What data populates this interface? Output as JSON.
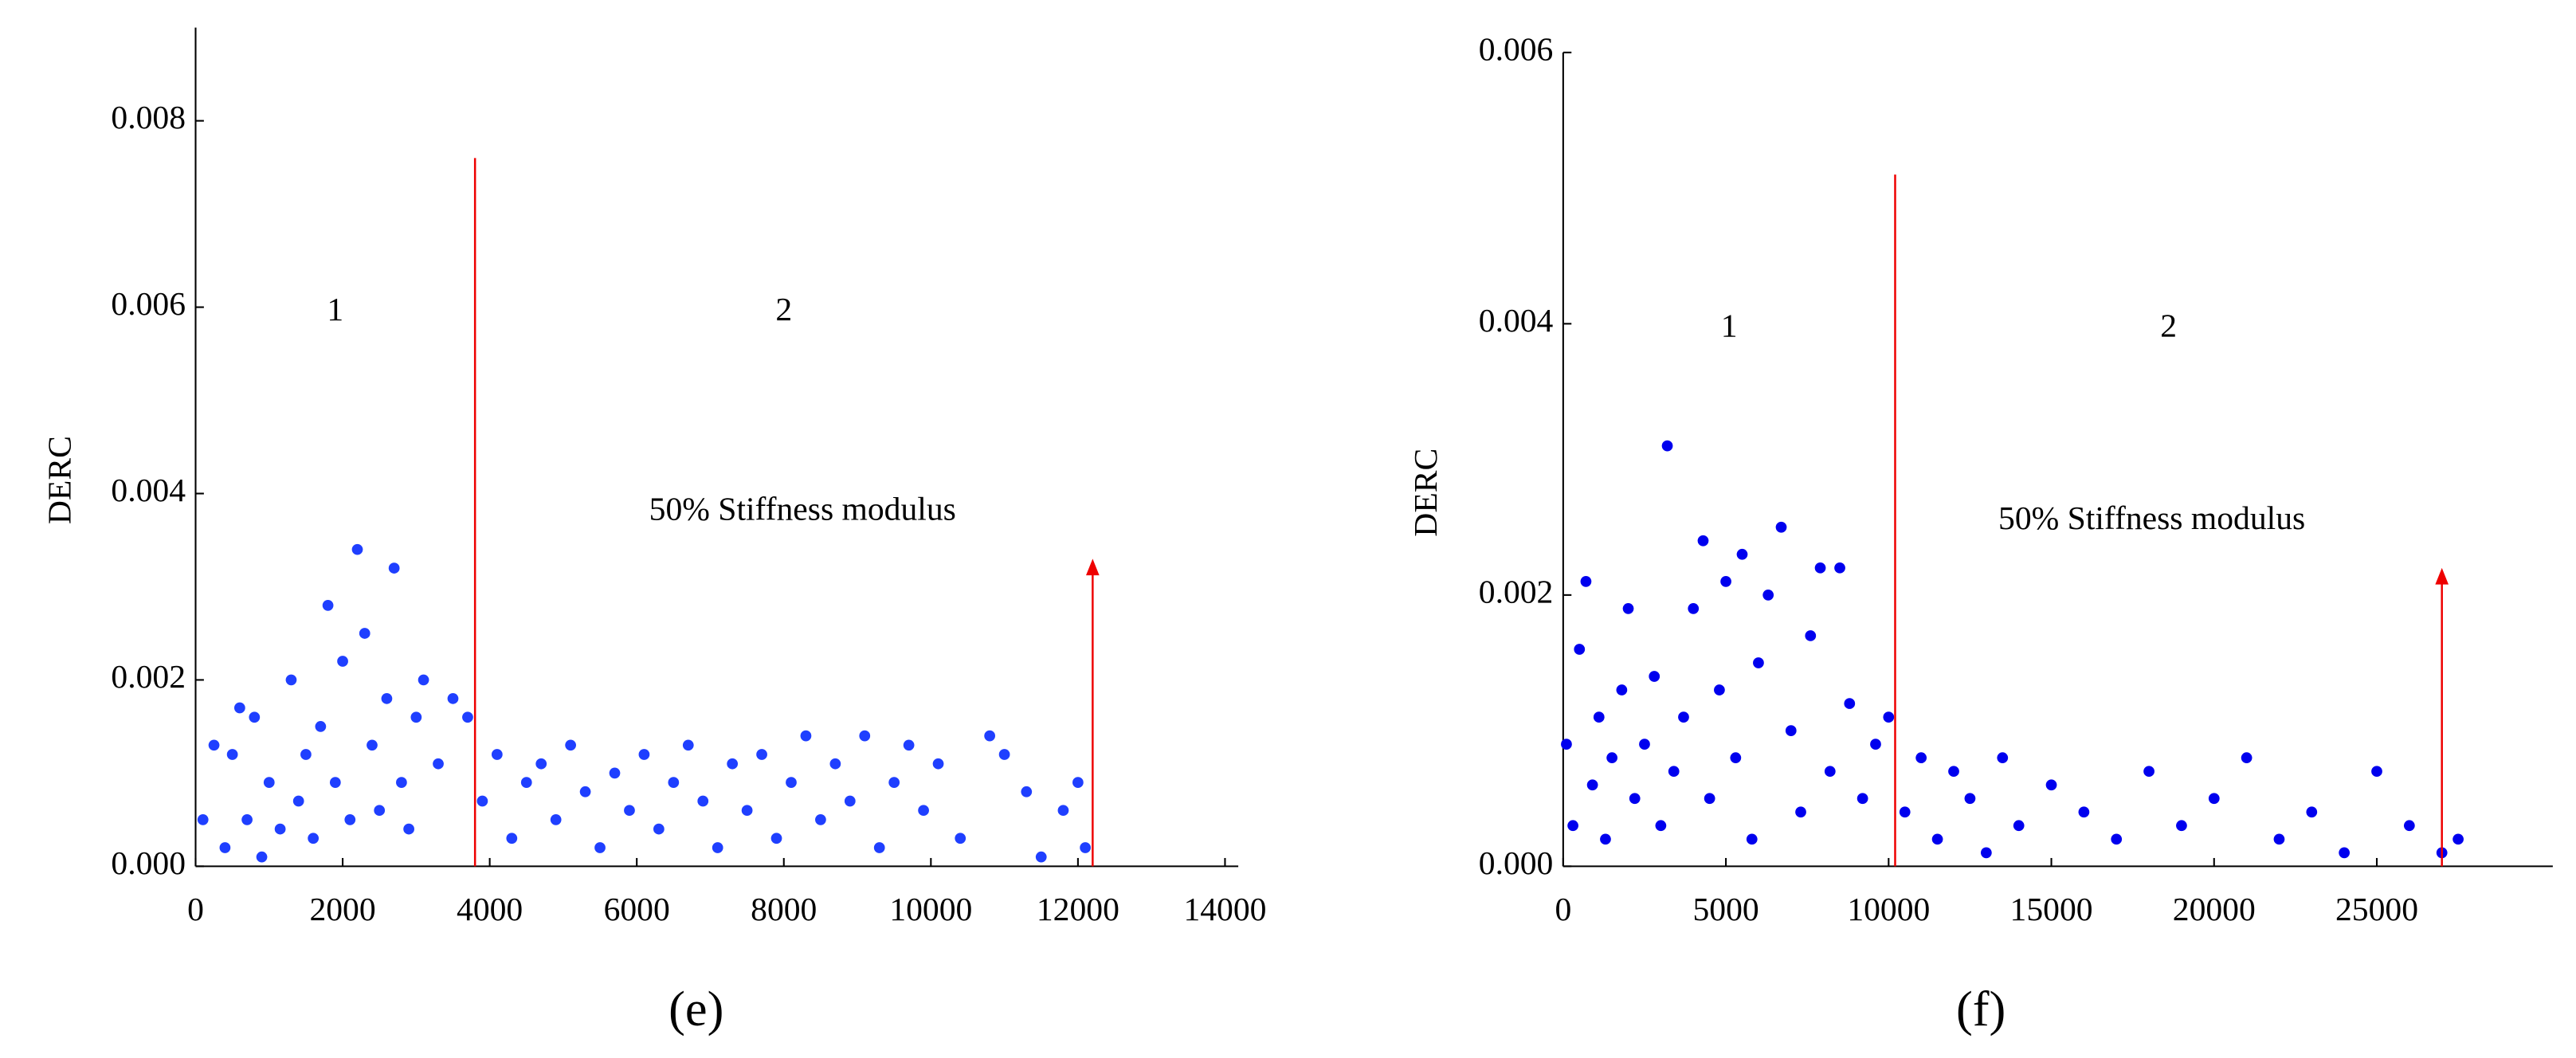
{
  "chart_data": [
    {
      "type": "scatter",
      "caption": "(e)",
      "y_label": "DERC",
      "color": "#1f3fff",
      "region_labels": [
        "1",
        "2"
      ],
      "annotation": "50% Stiffness modulus",
      "boundary_x": 3800,
      "boundary_top": 0.0076,
      "arrow_x": 12200,
      "arrow_top": 0.0033,
      "xlim": [
        0,
        14000
      ],
      "xticks": [
        0,
        2000,
        4000,
        6000,
        8000,
        10000,
        12000,
        14000
      ],
      "ylim": [
        0,
        0.009
      ],
      "yticks": [
        {
          "value": 0,
          "label": "0.000"
        },
        {
          "value": 0.002,
          "label": "0.002"
        },
        {
          "value": 0.004,
          "label": "0.004"
        },
        {
          "value": 0.006,
          "label": "0.006"
        },
        {
          "value": 0.008,
          "label": "0.008"
        }
      ],
      "x": [
        100,
        250,
        400,
        500,
        600,
        700,
        800,
        900,
        1000,
        1150,
        1300,
        1400,
        1500,
        1600,
        1700,
        1800,
        1900,
        2000,
        2100,
        2200,
        2300,
        2400,
        2500,
        2600,
        2700,
        2800,
        2900,
        3000,
        3100,
        3300,
        3500,
        3700,
        3900,
        4100,
        4300,
        4500,
        4700,
        4900,
        5100,
        5300,
        5500,
        5700,
        5900,
        6100,
        6300,
        6500,
        6700,
        6900,
        7100,
        7300,
        7500,
        7700,
        7900,
        8100,
        8300,
        8500,
        8700,
        8900,
        9100,
        9300,
        9500,
        9700,
        9900,
        10100,
        10400,
        10800,
        11000,
        11300,
        11500,
        11800,
        12000,
        12100
      ],
      "y": [
        0.0005,
        0.0013,
        0.0002,
        0.0012,
        0.0017,
        0.0005,
        0.0016,
        0.0001,
        0.0009,
        0.0004,
        0.002,
        0.0007,
        0.0012,
        0.0003,
        0.0015,
        0.0028,
        0.0009,
        0.0022,
        0.0005,
        0.0034,
        0.0025,
        0.0013,
        0.0006,
        0.0018,
        0.0032,
        0.0009,
        0.0004,
        0.0016,
        0.002,
        0.0011,
        0.0018,
        0.0016,
        0.0007,
        0.0012,
        0.0003,
        0.0009,
        0.0011,
        0.0005,
        0.0013,
        0.0008,
        0.0002,
        0.001,
        0.0006,
        0.0012,
        0.0004,
        0.0009,
        0.0013,
        0.0007,
        0.0002,
        0.0011,
        0.0006,
        0.0012,
        0.0003,
        0.0009,
        0.0014,
        0.0005,
        0.0011,
        0.0007,
        0.0014,
        0.0002,
        0.0009,
        0.0013,
        0.0006,
        0.0011,
        0.0003,
        0.0014,
        0.0012,
        0.0008,
        0.0001,
        0.0006,
        0.0009,
        0.0002
      ]
    },
    {
      "type": "scatter",
      "caption": "(f)",
      "y_label": "DERC",
      "color": "#0000ee",
      "region_labels": [
        "1",
        "2"
      ],
      "annotation": "50% Stiffness modulus",
      "boundary_x": 10200,
      "boundary_top": 0.0051,
      "arrow_x": 27000,
      "arrow_top": 0.0022,
      "xlim": [
        0,
        30000
      ],
      "xticks": [
        0,
        5000,
        10000,
        15000,
        20000,
        25000
      ],
      "ylim": [
        0,
        0.006
      ],
      "yticks": [
        {
          "value": 0,
          "label": "0.000"
        },
        {
          "value": 0.002,
          "label": "0.002"
        },
        {
          "value": 0.004,
          "label": "0.004"
        },
        {
          "value": 0.006,
          "label": "0.006"
        }
      ],
      "x": [
        100,
        300,
        500,
        700,
        900,
        1100,
        1300,
        1500,
        1800,
        2000,
        2200,
        2500,
        2800,
        3000,
        3200,
        3400,
        3700,
        4000,
        4300,
        4500,
        4800,
        5000,
        5300,
        5500,
        5800,
        6000,
        6300,
        6700,
        7000,
        7300,
        7600,
        7900,
        8200,
        8500,
        8800,
        9200,
        9600,
        10000,
        10500,
        11000,
        11500,
        12000,
        12500,
        13000,
        13500,
        14000,
        15000,
        16000,
        17000,
        18000,
        19000,
        20000,
        21000,
        22000,
        23000,
        24000,
        25000,
        26000,
        27000,
        27500
      ],
      "y": [
        0.0009,
        0.0003,
        0.0016,
        0.0021,
        0.0006,
        0.0011,
        0.0002,
        0.0008,
        0.0013,
        0.0019,
        0.0005,
        0.0009,
        0.0014,
        0.0003,
        0.0031,
        0.0007,
        0.0011,
        0.0019,
        0.0024,
        0.0005,
        0.0013,
        0.0021,
        0.0008,
        0.0023,
        0.0002,
        0.0015,
        0.002,
        0.0025,
        0.001,
        0.0004,
        0.0017,
        0.0022,
        0.0007,
        0.0022,
        0.0012,
        0.0005,
        0.0009,
        0.0011,
        0.0004,
        0.0008,
        0.0002,
        0.0007,
        0.0005,
        0.0001,
        0.0008,
        0.0003,
        0.0006,
        0.0004,
        0.0002,
        0.0007,
        0.0003,
        0.0005,
        0.0008,
        0.0002,
        0.0004,
        0.0001,
        0.0007,
        0.0003,
        0.0001,
        0.0002
      ]
    }
  ]
}
